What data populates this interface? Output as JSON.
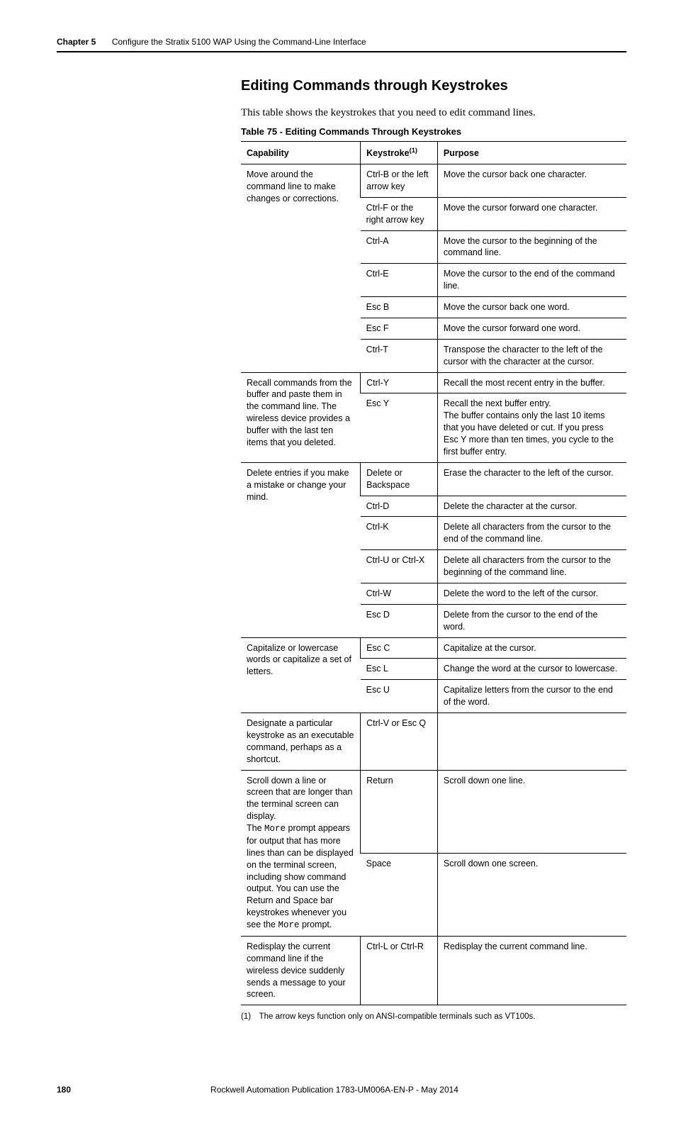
{
  "header": {
    "chapter_label": "Chapter 5",
    "chapter_title": "Configure the Stratix 5100 WAP Using the Command-Line Interface"
  },
  "section": {
    "heading": "Editing Commands through Keystrokes",
    "intro": "This table shows the keystrokes that you need to edit command lines.",
    "table_caption": "Table 75 - Editing Commands Through Keystrokes"
  },
  "table": {
    "headers": {
      "capability": "Capability",
      "keystroke_html": "Keystroke<sup>(1)</sup>",
      "purpose": "Purpose"
    },
    "groups": [
      {
        "capability": "Move around the command line to make changes or corrections.",
        "rows": [
          {
            "key": "Ctrl-B or the left arrow key",
            "purpose": "Move the cursor back one character."
          },
          {
            "key": "Ctrl-F or the right arrow key",
            "purpose": "Move the cursor forward one character."
          },
          {
            "key": "Ctrl-A",
            "purpose": "Move the cursor to the beginning of the command line."
          },
          {
            "key": "Ctrl-E",
            "purpose": "Move the cursor to the end of the command line."
          },
          {
            "key": "Esc B",
            "purpose": "Move the cursor back one word."
          },
          {
            "key": "Esc F",
            "purpose": "Move the cursor forward one word."
          },
          {
            "key": "Ctrl-T",
            "purpose": "Transpose the character to the left of the cursor with the character at the cursor."
          }
        ]
      },
      {
        "capability": "Recall commands from the buffer and paste them in the command line. The wireless device provides a buffer with the last ten items that you deleted.",
        "rows": [
          {
            "key": "Ctrl-Y",
            "purpose": "Recall the most recent entry in the buffer."
          },
          {
            "key": "Esc Y",
            "purpose": "Recall the next buffer entry.\nThe buffer contains only the last 10 items that you have deleted or cut. If you press Esc Y more than ten times, you cycle to the first buffer entry."
          }
        ]
      },
      {
        "capability": "Delete entries if you make a mistake or change your mind.",
        "rows": [
          {
            "key": "Delete or Backspace",
            "purpose": "Erase the character to the left of the cursor."
          },
          {
            "key": "Ctrl-D",
            "purpose": "Delete the character at the cursor."
          },
          {
            "key": "Ctrl-K",
            "purpose": "Delete all characters from the cursor to the end of the command line."
          },
          {
            "key": "Ctrl-U or Ctrl-X",
            "purpose": "Delete all characters from the cursor to the beginning of the command line."
          },
          {
            "key": "Ctrl-W",
            "purpose": "Delete the word to the left of the cursor."
          },
          {
            "key": "Esc D",
            "purpose": "Delete from the cursor to the end of the word."
          }
        ]
      },
      {
        "capability": "Capitalize or lowercase words or capitalize a set of letters.",
        "rows": [
          {
            "key": "Esc C",
            "purpose": "Capitalize at the cursor."
          },
          {
            "key": "Esc L",
            "purpose": "Change the word at the cursor to lowercase."
          },
          {
            "key": "Esc U",
            "purpose": "Capitalize letters from the cursor to the end of the word."
          }
        ]
      },
      {
        "capability": "Designate a particular keystroke as an executable command, perhaps as a shortcut.",
        "rows": [
          {
            "key": "Ctrl-V or Esc Q",
            "purpose": ""
          }
        ]
      },
      {
        "capability_html": "Scroll down a line or screen that are longer than the terminal screen can display.<br>The <span class=\"mono\">More</span> prompt appears for output that has more lines than can be displayed on the terminal screen, including show command output. You can use the Return and Space bar keystrokes whenever you see the <span class=\"mono\">More</span> prompt.",
        "rows": [
          {
            "key": "Return",
            "purpose": "Scroll down one line."
          },
          {
            "key": "Space",
            "purpose": "Scroll down one screen."
          }
        ]
      },
      {
        "capability": "Redisplay the current command line if the wireless device suddenly sends a message to your screen.",
        "rows": [
          {
            "key": "Ctrl-L or Ctrl-R",
            "purpose": "Redisplay the current command line."
          }
        ]
      }
    ]
  },
  "footnote": "(1) The arrow keys function only on ANSI-compatible terminals such as VT100s.",
  "footer": {
    "page": "180",
    "pub": "Rockwell Automation Publication 1783-UM006A-EN-P - May 2014"
  }
}
